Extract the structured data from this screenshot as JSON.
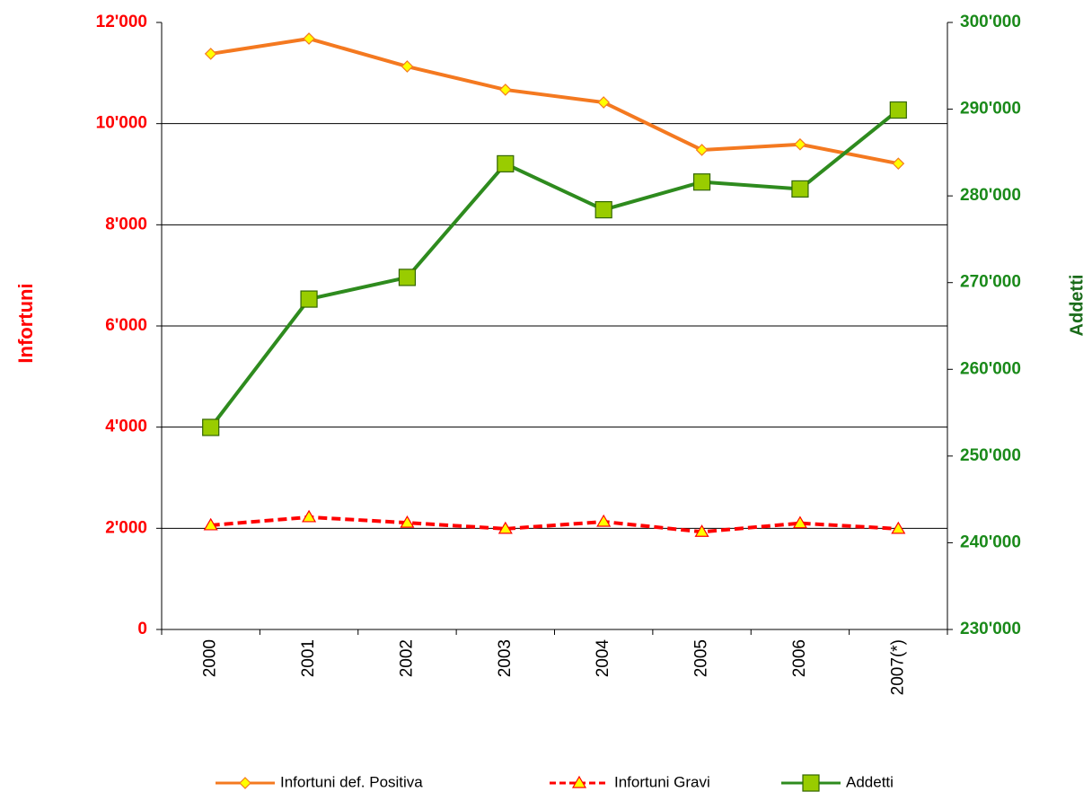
{
  "chart_data": {
    "type": "line",
    "categories": [
      "2000",
      "2001",
      "2002",
      "2003",
      "2004",
      "2005",
      "2006",
      "2007(*)"
    ],
    "series": [
      {
        "name": "Infortuni def. Positiva",
        "color": "#f47920",
        "marker": "diamond",
        "values": [
          11380,
          11680,
          11130,
          10670,
          10420,
          9480,
          9590,
          9210
        ]
      },
      {
        "name": "Infortuni Gravi",
        "color": "#ff0000",
        "marker": "triangle",
        "dashed": true,
        "values": [
          2060,
          2220,
          2110,
          1990,
          2130,
          1930,
          2100,
          1990
        ]
      },
      {
        "name": "Addetti",
        "color": "#2e8b1e",
        "marker": "square",
        "axis": "y2",
        "values": [
          253300,
          268100,
          270600,
          283700,
          278400,
          281600,
          280800,
          289900
        ]
      }
    ],
    "ylabel": "Infortuni",
    "y2label": "Addetti",
    "ylim": [
      0,
      12000
    ],
    "yticks": [
      0,
      {
        "value": 2000,
        "label": "2'000"
      },
      {
        "value": 4000,
        "label": "4'000"
      },
      {
        "value": 6000,
        "label": "6'000"
      },
      {
        "value": 8000,
        "label": "8'000"
      },
      {
        "value": 10000,
        "label": "10'000"
      },
      {
        "value": 12000,
        "label": "12'000"
      }
    ],
    "y2lim": [
      230000,
      300000
    ],
    "y2ticks": [
      {
        "value": 230000,
        "label": "230'000"
      },
      {
        "value": 240000,
        "label": "240'000"
      },
      {
        "value": 250000,
        "label": "250'000"
      },
      {
        "value": 260000,
        "label": "260'000"
      },
      {
        "value": 270000,
        "label": "270'000"
      },
      {
        "value": 280000,
        "label": "280'000"
      },
      {
        "value": 290000,
        "label": "290'000"
      },
      {
        "value": 300000,
        "label": "300'000"
      }
    ],
    "grid": true,
    "legend": "bottom"
  }
}
